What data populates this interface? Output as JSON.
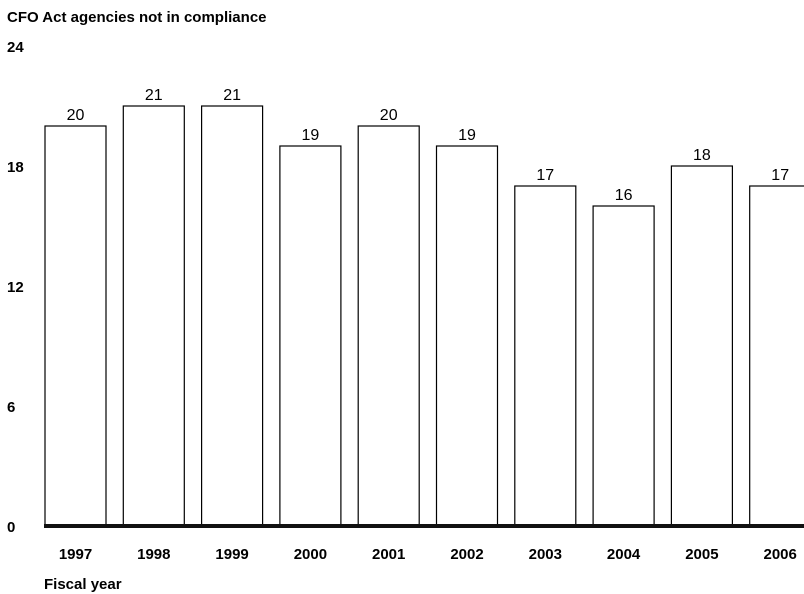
{
  "chart_data": {
    "type": "bar",
    "ylabel": "CFO Act agencies not in compliance",
    "xlabel": "Fiscal year",
    "categories": [
      "1997",
      "1998",
      "1999",
      "2000",
      "2001",
      "2002",
      "2003",
      "2004",
      "2005",
      "2006"
    ],
    "values": [
      20,
      21,
      21,
      19,
      20,
      19,
      17,
      16,
      18,
      17
    ],
    "ylim": [
      0,
      24
    ],
    "yticks": [
      0,
      6,
      12,
      18,
      24
    ],
    "grid": false,
    "legend": "none",
    "colors": {
      "bar_fill": "#ffffff",
      "bar_stroke": "#000000",
      "baseline": "#111111"
    }
  }
}
